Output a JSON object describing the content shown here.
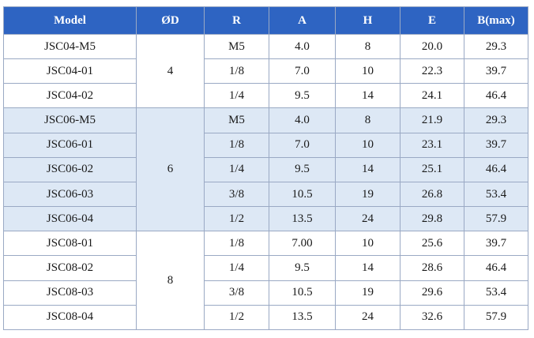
{
  "headers": [
    "Model",
    "ØD",
    "R",
    "A",
    "H",
    "E",
    "B(max)"
  ],
  "groups": [
    {
      "od": "4",
      "shaded": false,
      "rows": [
        {
          "model": "JSC04-M5",
          "r": "M5",
          "a": "4.0",
          "h": "8",
          "e": "20.0",
          "b": "29.3"
        },
        {
          "model": "JSC04-01",
          "r": "1/8",
          "a": "7.0",
          "h": "10",
          "e": "22.3",
          "b": "39.7"
        },
        {
          "model": "JSC04-02",
          "r": "1/4",
          "a": "9.5",
          "h": "14",
          "e": "24.1",
          "b": "46.4"
        }
      ]
    },
    {
      "od": "6",
      "shaded": true,
      "rows": [
        {
          "model": "JSC06-M5",
          "r": "M5",
          "a": "4.0",
          "h": "8",
          "e": "21.9",
          "b": "29.3"
        },
        {
          "model": "JSC06-01",
          "r": "1/8",
          "a": "7.0",
          "h": "10",
          "e": "23.1",
          "b": "39.7"
        },
        {
          "model": "JSC06-02",
          "r": "1/4",
          "a": "9.5",
          "h": "14",
          "e": "25.1",
          "b": "46.4"
        },
        {
          "model": "JSC06-03",
          "r": "3/8",
          "a": "10.5",
          "h": "19",
          "e": "26.8",
          "b": "53.4"
        },
        {
          "model": "JSC06-04",
          "r": "1/2",
          "a": "13.5",
          "h": "24",
          "e": "29.8",
          "b": "57.9"
        }
      ]
    },
    {
      "od": "8",
      "shaded": false,
      "rows": [
        {
          "model": "JSC08-01",
          "r": "1/8",
          "a": "7.00",
          "h": "10",
          "e": "25.6",
          "b": "39.7"
        },
        {
          "model": "JSC08-02",
          "r": "1/4",
          "a": "9.5",
          "h": "14",
          "e": "28.6",
          "b": "46.4"
        },
        {
          "model": "JSC08-03",
          "r": "3/8",
          "a": "10.5",
          "h": "19",
          "e": "29.6",
          "b": "53.4"
        },
        {
          "model": "JSC08-04",
          "r": "1/2",
          "a": "13.5",
          "h": "24",
          "e": "32.6",
          "b": "57.9"
        }
      ]
    }
  ],
  "colors": {
    "header_bg": "#2e64c2",
    "header_text": "#ffffff",
    "shaded_row": "#dde8f5",
    "border": "#9aa9c4"
  }
}
